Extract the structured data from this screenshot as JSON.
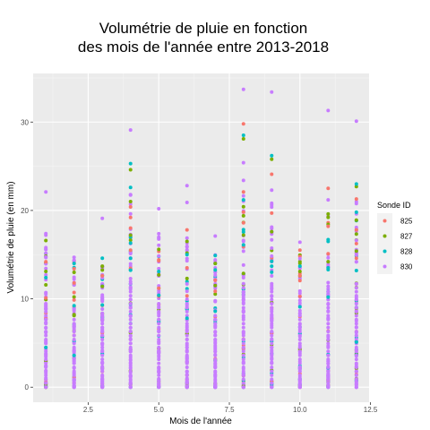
{
  "chart_data": {
    "type": "scatter",
    "title_lines": [
      "Volumétrie de pluie en fonction",
      "des mois de l'année entre 2013-2018"
    ],
    "xlabel": "Mois de l'année",
    "ylabel": "Volumétrie de pluie (en mm)",
    "xlim": [
      0.55,
      12.45
    ],
    "ylim": [
      -1.7,
      35.5
    ],
    "x_ticks": [
      2.5,
      5.0,
      7.5,
      10.0,
      12.5
    ],
    "x_tick_labels": [
      "2.5",
      "5.0",
      "7.5",
      "10.0",
      "12.5"
    ],
    "y_ticks": [
      0,
      10,
      20,
      30
    ],
    "y_tick_labels": [
      "0",
      "10",
      "20",
      "30"
    ],
    "legend": {
      "title": "Sonde ID",
      "position": "right",
      "entries": [
        {
          "label": "825",
          "color": "#F8766D"
        },
        {
          "label": "827",
          "color": "#7CAE00"
        },
        {
          "label": "828",
          "color": "#00BFC4"
        },
        {
          "label": "830",
          "color": "#C77CFF"
        }
      ]
    },
    "series": [
      {
        "name": "825",
        "color": "#F8766D",
        "points": [
          [
            1,
            14.2
          ],
          [
            1,
            10.1
          ],
          [
            2,
            11.8
          ],
          [
            3,
            12.6
          ],
          [
            4,
            20.4
          ],
          [
            4,
            19.2
          ],
          [
            4,
            18.0
          ],
          [
            4,
            15.5
          ],
          [
            5,
            14.3
          ],
          [
            5,
            11.2
          ],
          [
            6,
            17.8
          ],
          [
            6,
            13.5
          ],
          [
            7,
            12.1
          ],
          [
            8,
            29.8
          ],
          [
            8,
            22.1
          ],
          [
            8,
            18.6
          ],
          [
            8,
            15.9
          ],
          [
            9,
            24.1
          ],
          [
            9,
            19.7
          ],
          [
            10,
            12.6
          ],
          [
            11,
            22.5
          ],
          [
            11,
            18.2
          ],
          [
            11,
            15.1
          ],
          [
            12,
            21.3
          ],
          [
            12,
            17.8
          ],
          [
            12,
            14.6
          ]
        ]
      },
      {
        "name": "827",
        "color": "#7CAE00",
        "points": [
          [
            1,
            16.6
          ],
          [
            1,
            13.1
          ],
          [
            2,
            13.0
          ],
          [
            3,
            13.7
          ],
          [
            3,
            11.4
          ],
          [
            4,
            24.6
          ],
          [
            4,
            21.0
          ],
          [
            4,
            17.2
          ],
          [
            5,
            15.6
          ],
          [
            5,
            12.7
          ],
          [
            6,
            16.5
          ],
          [
            6,
            12.3
          ],
          [
            7,
            14.0
          ],
          [
            7,
            11.5
          ],
          [
            8,
            28.1
          ],
          [
            8,
            19.4
          ],
          [
            8,
            17.2
          ],
          [
            9,
            25.8
          ],
          [
            9,
            17.6
          ],
          [
            10,
            13.1
          ],
          [
            11,
            19.6
          ],
          [
            11,
            14.2
          ],
          [
            12,
            22.7
          ],
          [
            12,
            18.9
          ],
          [
            12,
            15.4
          ]
        ]
      },
      {
        "name": "828",
        "color": "#00BFC4",
        "points": [
          [
            1,
            12.4
          ],
          [
            1,
            4.5
          ],
          [
            2,
            14.0
          ],
          [
            2,
            3.6
          ],
          [
            3,
            14.6
          ],
          [
            3,
            9.3
          ],
          [
            4,
            25.3
          ],
          [
            4,
            22.6
          ],
          [
            4,
            16.3
          ],
          [
            5,
            13.1
          ],
          [
            5,
            10.4
          ],
          [
            6,
            15.0
          ],
          [
            6,
            7.8
          ],
          [
            7,
            14.9
          ],
          [
            7,
            8.6
          ],
          [
            8,
            28.5
          ],
          [
            8,
            21.2
          ],
          [
            8,
            16.1
          ],
          [
            9,
            26.2
          ],
          [
            9,
            13.7
          ],
          [
            10,
            13.7
          ],
          [
            10,
            9.1
          ],
          [
            11,
            13.5
          ],
          [
            11,
            10.2
          ],
          [
            12,
            23.0
          ],
          [
            12,
            19.8
          ],
          [
            12,
            13.2
          ],
          [
            12,
            5.1
          ]
        ]
      },
      {
        "name": "830",
        "color": "#C77CFF",
        "points": [
          [
            1,
            22.1
          ],
          [
            1,
            17.2
          ],
          [
            1,
            15.8
          ],
          [
            1,
            0.0
          ],
          [
            2,
            14.7
          ],
          [
            2,
            0.0
          ],
          [
            3,
            19.1
          ],
          [
            3,
            0.0
          ],
          [
            4,
            29.1
          ],
          [
            4,
            0.0
          ],
          [
            5,
            20.2
          ],
          [
            5,
            0.0
          ],
          [
            6,
            22.8
          ],
          [
            6,
            20.9
          ],
          [
            6,
            0.0
          ],
          [
            7,
            17.1
          ],
          [
            7,
            0.0
          ],
          [
            8,
            33.7
          ],
          [
            8,
            25.4
          ],
          [
            8,
            23.4
          ],
          [
            8,
            0.0
          ],
          [
            9,
            33.4
          ],
          [
            9,
            22.3
          ],
          [
            9,
            0.0
          ],
          [
            10,
            16.4
          ],
          [
            10,
            0.0
          ],
          [
            11,
            31.3
          ],
          [
            11,
            21.2
          ],
          [
            11,
            0.0
          ],
          [
            12,
            30.1
          ],
          [
            12,
            0.0
          ]
        ]
      }
    ],
    "columns": [
      {
        "month": 1,
        "max": 17.5
      },
      {
        "month": 2,
        "max": 14.5
      },
      {
        "month": 3,
        "max": 14.8
      },
      {
        "month": 4,
        "max": 22.0
      },
      {
        "month": 5,
        "max": 17.5
      },
      {
        "month": 6,
        "max": 17.8
      },
      {
        "month": 7,
        "max": 15.5
      },
      {
        "month": 8,
        "max": 22.0
      },
      {
        "month": 9,
        "max": 21.5
      },
      {
        "month": 10,
        "max": 15.5
      },
      {
        "month": 11,
        "max": 20.0
      },
      {
        "month": 12,
        "max": 21.8
      }
    ]
  }
}
